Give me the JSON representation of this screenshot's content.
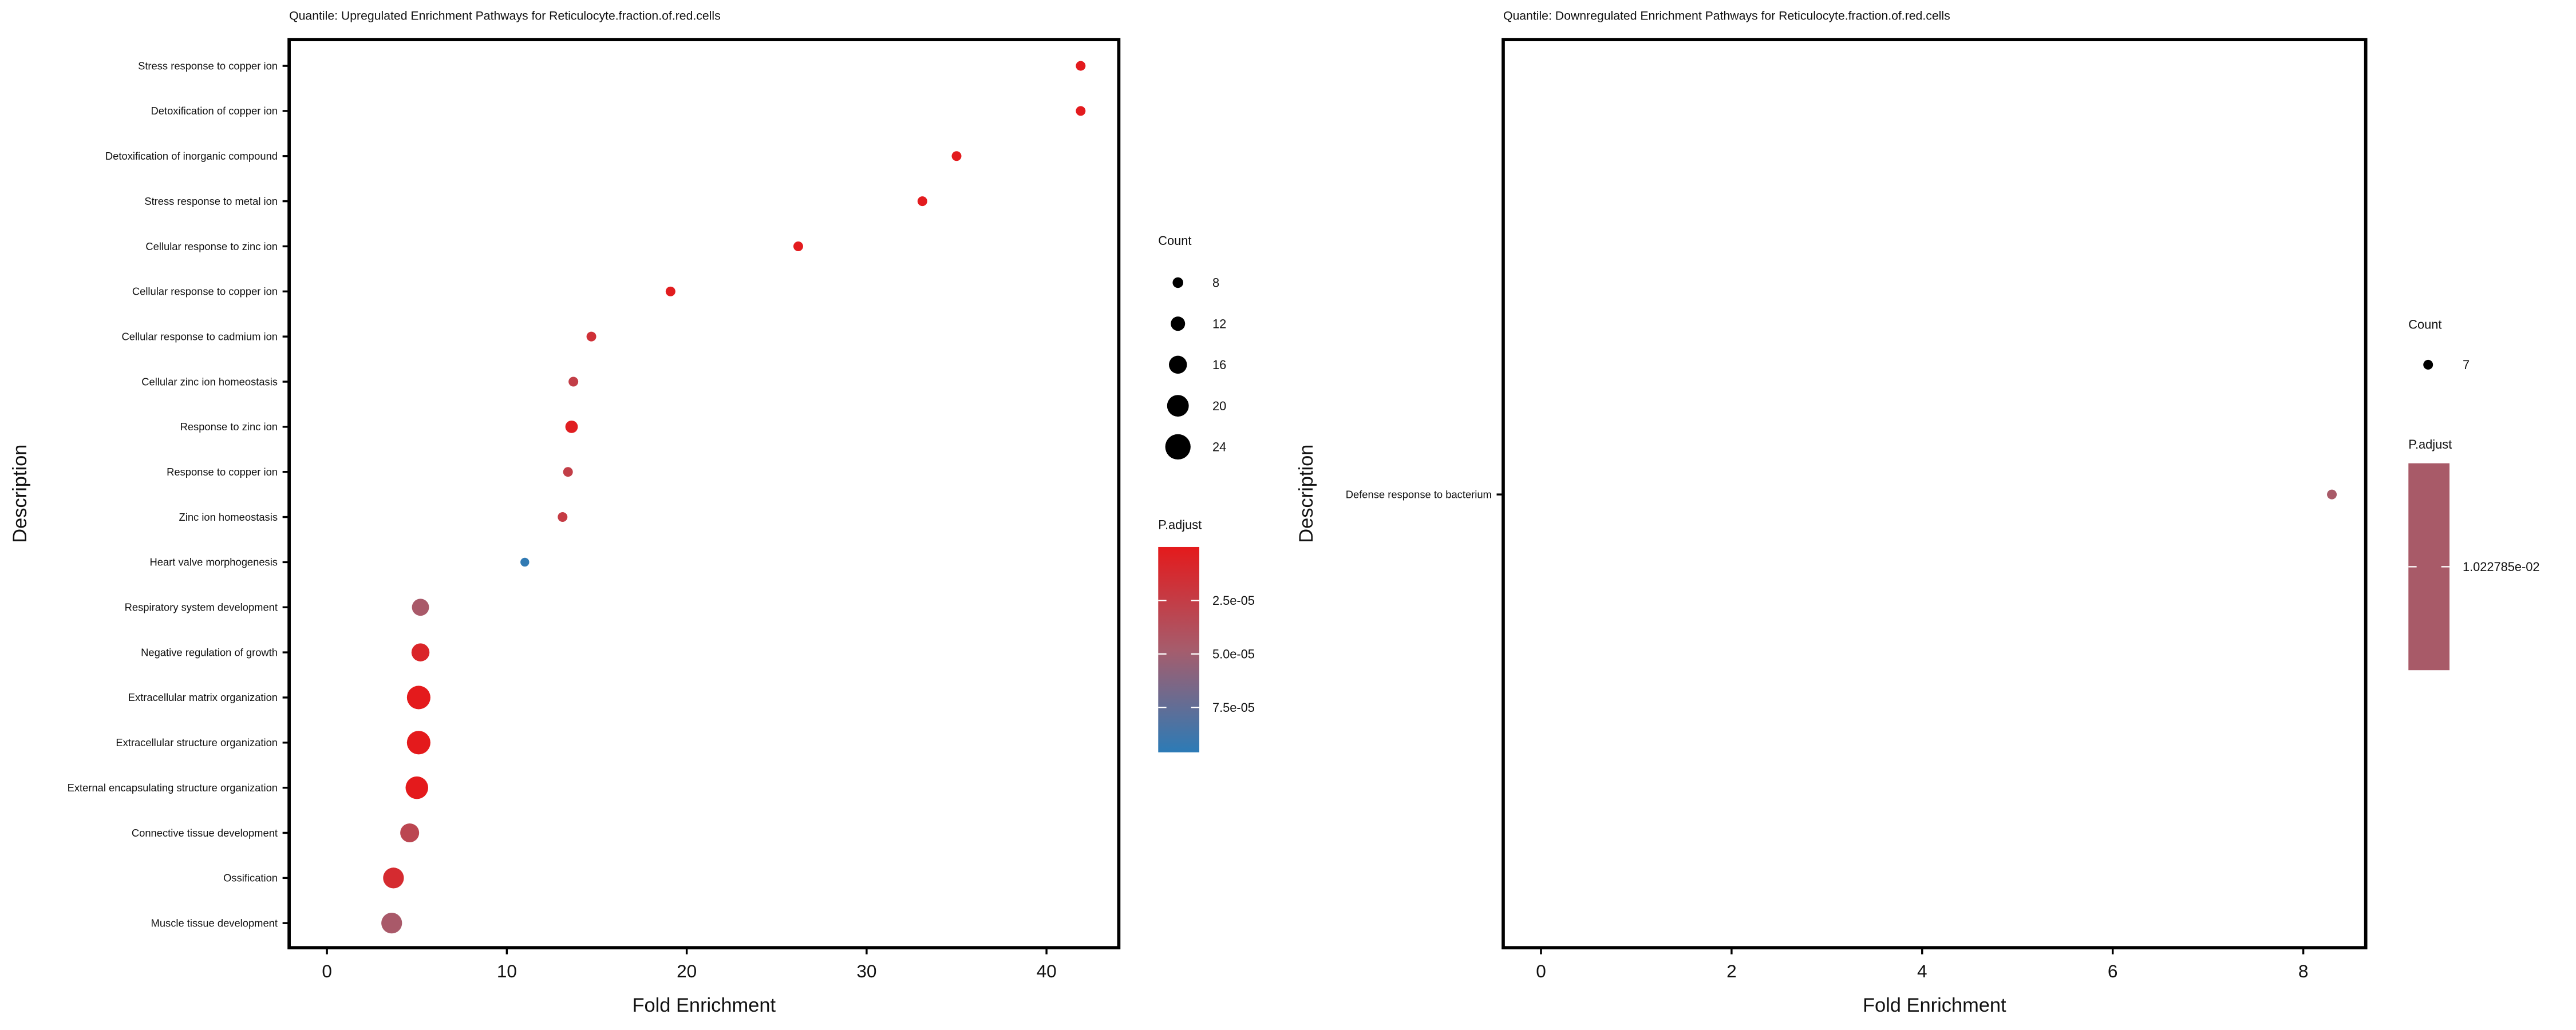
{
  "chart_data": [
    {
      "type": "scatter",
      "title": "Quantile: Upregulated Enrichment Pathways for Reticulocyte.fraction.of.red.cells",
      "xlabel": "Fold Enrichment",
      "ylabel": "Description",
      "xlim": [
        -2,
        44
      ],
      "xticks": [
        0,
        10,
        20,
        30,
        40
      ],
      "grid": false,
      "categories": [
        "Stress response to copper ion",
        "Detoxification of copper ion",
        "Detoxification of inorganic compound",
        "Stress response to metal ion",
        "Cellular response to zinc ion",
        "Cellular response to copper ion",
        "Cellular response to cadmium ion",
        "Cellular zinc ion homeostasis",
        "Response to zinc ion",
        "Response to copper ion",
        "Zinc ion homeostasis",
        "Heart valve morphogenesis",
        "Respiratory system development",
        "Negative regulation of growth",
        "Extracellular matrix organization",
        "Extracellular structure organization",
        "External encapsulating structure organization",
        "Connective tissue development",
        "Ossification",
        "Muscle tissue development"
      ],
      "fold_enrichment": [
        41.9,
        41.9,
        35.0,
        33.1,
        26.2,
        19.1,
        14.7,
        13.7,
        13.6,
        13.4,
        13.1,
        11.0,
        5.2,
        5.2,
        5.1,
        5.1,
        5.0,
        4.6,
        3.7,
        3.6
      ],
      "count": [
        7,
        7,
        7,
        7,
        7,
        7,
        7,
        7,
        10,
        7,
        7,
        6,
        15,
        16,
        22,
        22,
        21,
        17,
        19,
        19
      ],
      "p_adjust": [
        1e-06,
        1e-06,
        1e-06,
        1e-06,
        1e-06,
        2e-06,
        1.6e-05,
        2.6e-05,
        3e-06,
        2.6e-05,
        2.4e-05,
        9.4e-05,
        4.6e-05,
        8e-06,
        1e-07,
        1e-07,
        1e-07,
        3.2e-05,
        1.2e-05,
        4.6e-05
      ],
      "legend": {
        "size_title": "Count",
        "size_breaks": [
          8,
          12,
          16,
          20,
          24
        ],
        "size_labels": [
          "8",
          "12",
          "16",
          "20",
          "24"
        ],
        "color_title": "P.adjust",
        "color_range": [
          0,
          9.6e-05
        ],
        "color_breaks": [
          2.5e-05,
          5e-05,
          7.5e-05
        ],
        "color_labels": [
          "2.5e-05",
          "5.0e-05",
          "7.5e-05"
        ],
        "placement": "right"
      }
    },
    {
      "type": "scatter",
      "title": "Quantile: Downregulated Enrichment Pathways for Reticulocyte.fraction.of.red.cells",
      "xlabel": "Fold Enrichment",
      "ylabel": "Description",
      "xlim": [
        -0.4,
        8.7
      ],
      "xticks": [
        0,
        2,
        4,
        6,
        8
      ],
      "grid": false,
      "categories": [
        "Defense response to bacterium"
      ],
      "fold_enrichment": [
        8.3
      ],
      "count": [
        7
      ],
      "p_adjust": [
        0.01022785
      ],
      "legend": {
        "size_title": "Count",
        "size_breaks": [
          7
        ],
        "size_labels": [
          "7"
        ],
        "color_title": "P.adjust",
        "color_labels": [
          "1.022785e-02"
        ],
        "placement": "right"
      }
    }
  ],
  "colors": {
    "low_p": "#e41a1c",
    "mid_p": "#a65c6c",
    "high_p": "#2c7bb6",
    "single_p": "#a85a68"
  }
}
